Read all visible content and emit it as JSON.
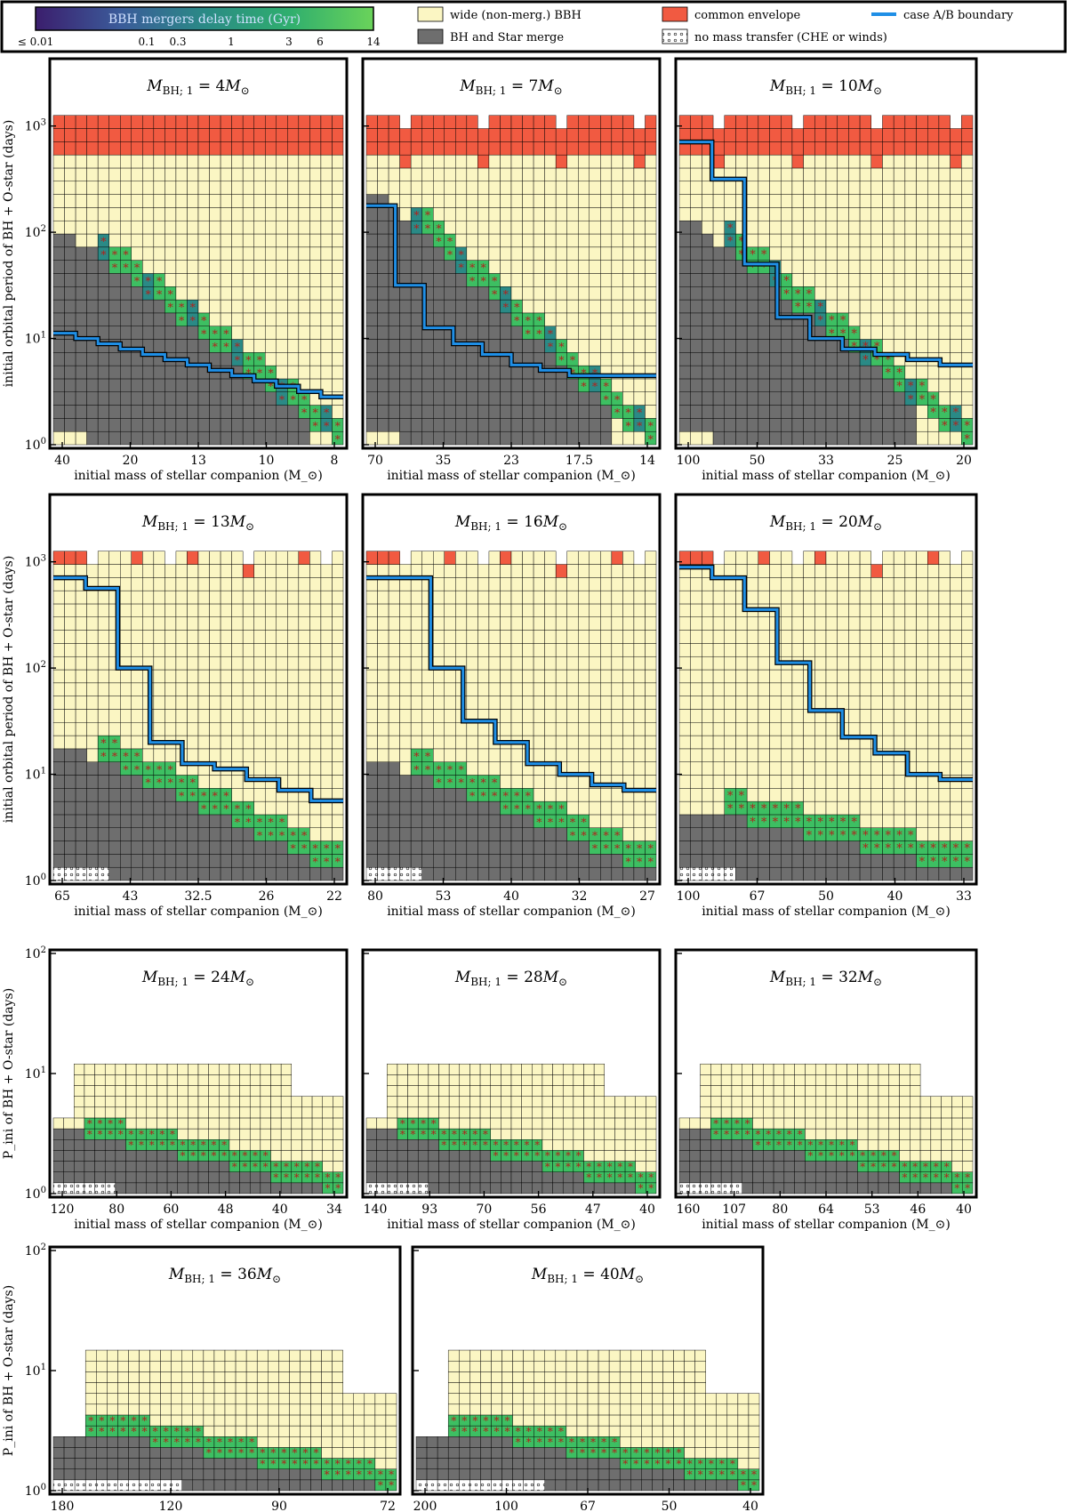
{
  "legend": {
    "colorbar_title": "BBH mergers delay time (Gyr)",
    "colorbar_ticks": [
      "≤ 0.01",
      "0.1",
      "0.3",
      "1",
      "3",
      "6",
      "14"
    ],
    "items": [
      {
        "label": "wide (non-merg.) BBH",
        "color": "#fbf6c3"
      },
      {
        "label": "BH and Star merge",
        "color": "#6e6e6e"
      },
      {
        "label": "common envelope",
        "color": "#f15a41"
      },
      {
        "label": "no mass transfer (CHE or winds)",
        "color": "#ffffff"
      },
      {
        "label": "case A/B boundary",
        "color": "#1f8fe6"
      }
    ]
  },
  "colors": {
    "wide": "#fbf6c3",
    "merge": "#6e6e6e",
    "ce": "#f15a41",
    "boundary": "#1f8fe6",
    "bbh_short": "#2a8a86",
    "bbh_long": "#3dbf62"
  },
  "chart_data": [
    {
      "type": "heatmap",
      "title": "M_BH;1 = 4M_⊙",
      "bh_mass": "4",
      "ylabel": "initial orbital period of BH + O-star (days)",
      "xlabel": "initial mass of stellar companion (M_⊙)",
      "x_ticks": [
        "40",
        "20",
        "13",
        "10",
        "8"
      ],
      "y_ticks": [
        "10^0",
        "10^1",
        "10^2",
        "10^3"
      ],
      "ylim_log": [
        0,
        3.6
      ],
      "boundary_log_period": [
        1.05,
        1.0,
        0.95,
        0.9,
        0.85,
        0.8,
        0.75,
        0.7,
        0.65,
        0.6,
        0.55,
        0.5,
        0.45
      ]
    },
    {
      "type": "heatmap",
      "title": "M_BH;1 = 7M_⊙",
      "bh_mass": "7",
      "xlabel": "initial mass of stellar companion (M_⊙)",
      "x_ticks": [
        "70",
        "35",
        "23",
        "17.5",
        "14"
      ],
      "ylim_log": [
        0,
        3.6
      ],
      "boundary_log_period": [
        2.25,
        1.5,
        1.1,
        0.95,
        0.85,
        0.75,
        0.7,
        0.65,
        0.65,
        0.65
      ]
    },
    {
      "type": "heatmap",
      "title": "M_BH;1 = 10M_⊙",
      "bh_mass": "10",
      "xlabel": "initial mass of stellar companion (M_⊙)",
      "x_ticks": [
        "100",
        "50",
        "33",
        "25",
        "20"
      ],
      "ylim_log": [
        0,
        3.6
      ],
      "boundary_log_period": [
        2.85,
        2.5,
        1.7,
        1.2,
        1.0,
        0.9,
        0.85,
        0.8,
        0.75
      ]
    },
    {
      "type": "heatmap",
      "title": "M_BH;1 = 13M_⊙",
      "bh_mass": "13",
      "ylabel": "initial orbital period of BH + O-star (days)",
      "xlabel": "initial mass of stellar companion (M_⊙)",
      "x_ticks": [
        "65",
        "43",
        "32.5",
        "26",
        "22"
      ],
      "ylim_log": [
        0,
        3.6
      ],
      "boundary_log_period": [
        2.85,
        2.75,
        2.0,
        1.3,
        1.1,
        1.05,
        0.95,
        0.85,
        0.75
      ]
    },
    {
      "type": "heatmap",
      "title": "M_BH;1 = 16M_⊙",
      "bh_mass": "16",
      "xlabel": "initial mass of stellar companion (M_⊙)",
      "x_ticks": [
        "80",
        "53",
        "40",
        "32",
        "27"
      ],
      "ylim_log": [
        0,
        3.6
      ],
      "boundary_log_period": [
        2.85,
        2.85,
        2.0,
        1.5,
        1.3,
        1.1,
        1.0,
        0.9,
        0.85
      ]
    },
    {
      "type": "heatmap",
      "title": "M_BH;1 = 20M_⊙",
      "bh_mass": "20",
      "xlabel": "initial mass of stellar companion (M_⊙)",
      "x_ticks": [
        "100",
        "67",
        "50",
        "40",
        "33"
      ],
      "ylim_log": [
        0,
        3.6
      ],
      "boundary_log_period": [
        2.95,
        2.85,
        2.55,
        2.05,
        1.6,
        1.35,
        1.2,
        1.0,
        0.95
      ]
    },
    {
      "type": "heatmap",
      "title": "M_BH;1 = 24M_⊙",
      "bh_mass": "24",
      "ylabel": "P_ini of BH + O-star (days)",
      "xlabel": "initial mass of stellar companion (M_⊙)",
      "x_ticks": [
        "120",
        "80",
        "60",
        "48",
        "40",
        "34"
      ],
      "y_ticks": [
        "10^0",
        "10^1",
        "10^2"
      ],
      "ylim_log": [
        0,
        2
      ]
    },
    {
      "type": "heatmap",
      "title": "M_BH;1 = 28M_⊙",
      "bh_mass": "28",
      "xlabel": "initial mass of stellar companion (M_⊙)",
      "x_ticks": [
        "140",
        "93",
        "70",
        "56",
        "47",
        "40"
      ],
      "ylim_log": [
        0,
        2
      ]
    },
    {
      "type": "heatmap",
      "title": "M_BH;1 = 32M_⊙",
      "bh_mass": "32",
      "xlabel": "initial mass of stellar companion (M_⊙)",
      "x_ticks": [
        "160",
        "107",
        "80",
        "64",
        "53",
        "46",
        "40"
      ],
      "ylim_log": [
        0,
        2
      ]
    },
    {
      "type": "heatmap",
      "title": "M_BH;1 = 36M_⊙",
      "bh_mass": "36",
      "ylabel": "P_ini of BH + O-star (days)",
      "xlabel": "initial mass of stellar companion (M_⊙)",
      "x_ticks": [
        "180",
        "120",
        "90",
        "72"
      ],
      "ylim_log": [
        0,
        2
      ]
    },
    {
      "type": "heatmap",
      "title": "M_BH;1 = 40M_⊙",
      "bh_mass": "40",
      "xlabel": "initial mass of stellar companion (M_⊙)",
      "x_ticks": [
        "200",
        "100",
        "67",
        "50",
        "40"
      ],
      "ylim_log": [
        0,
        2
      ]
    }
  ]
}
